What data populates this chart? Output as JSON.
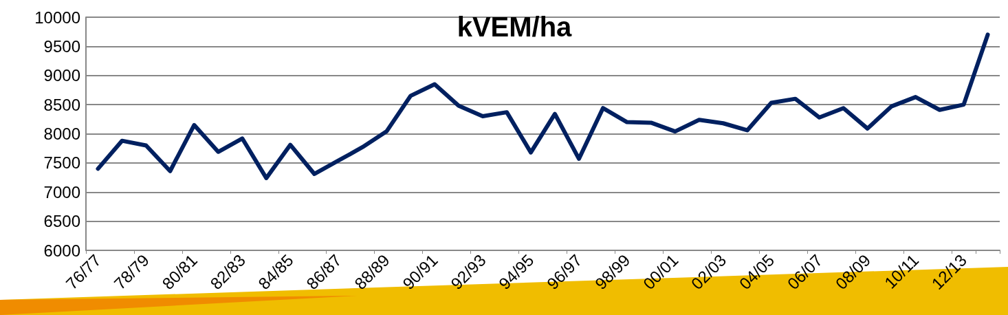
{
  "chart_data": {
    "type": "line",
    "title": "kVEM/ha",
    "categories": [
      "76/77",
      null,
      "78/79",
      null,
      "80/81",
      null,
      "82/83",
      null,
      "84/85",
      null,
      "86/87",
      null,
      "88/89",
      null,
      "90/91",
      null,
      "92/93",
      null,
      "94/95",
      null,
      "96/97",
      null,
      "98/99",
      null,
      "00/01",
      null,
      "02/03",
      null,
      "04/05",
      null,
      "06/07",
      null,
      "08/09",
      null,
      "10/11",
      null,
      "12/13",
      null
    ],
    "series": [
      {
        "color": "#002060",
        "values": [
          7400,
          7880,
          7800,
          7360,
          8150,
          7690,
          7920,
          7240,
          7810,
          7310,
          7540,
          7770,
          8040,
          8650,
          8850,
          8480,
          8300,
          8370,
          7680,
          8340,
          7570,
          8440,
          8200,
          8190,
          8040,
          8240,
          8180,
          8060,
          8530,
          8600,
          8280,
          8440,
          8090,
          8470,
          8630,
          8410,
          8500,
          9700
        ]
      }
    ],
    "ylim": [
      6000,
      10000
    ],
    "yticks": [
      6000,
      6500,
      7000,
      7500,
      8000,
      8500,
      9000,
      9500,
      10000
    ],
    "grid": "y",
    "marker": "none",
    "line_style": "solid"
  }
}
